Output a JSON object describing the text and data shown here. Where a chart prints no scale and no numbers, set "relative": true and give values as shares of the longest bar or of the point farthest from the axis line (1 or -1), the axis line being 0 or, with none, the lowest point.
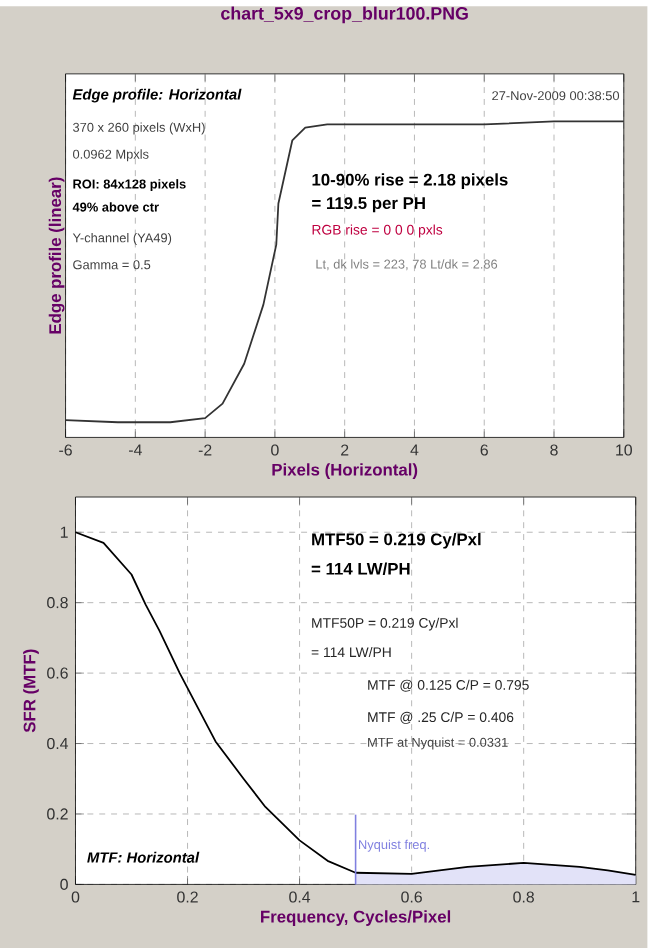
{
  "chart_data": [
    {
      "type": "line",
      "title": "chart_5x9_crop_blur100.PNG",
      "xlabel": "Pixels (Horizontal)",
      "ylabel": "Edge profile (linear)",
      "relative": true,
      "color": "#333333",
      "x": [
        -6,
        -4.5,
        -3,
        -2,
        -1.5,
        -0.88,
        -0.33,
        0.04,
        0.1,
        0.5,
        0.87,
        1.5,
        2.15,
        4,
        6,
        8,
        10
      ],
      "values": [
        0.055,
        0.048,
        0.048,
        0.061,
        0.107,
        0.233,
        0.42,
        0.61,
        0.74,
        0.94,
        0.98,
        0.99,
        0.99,
        0.99,
        0.99,
        1.0,
        1.0
      ],
      "xlim": [
        -6,
        10
      ],
      "xticks": [
        -6,
        -4,
        -2,
        0,
        2,
        4,
        6,
        8,
        10
      ],
      "grid": "x",
      "annotations": [
        "Edge profile: Horizontal",
        "27-Nov-2009 00:38:50",
        "370 x 260 pixels (WxH)",
        "0.0962 Mpxls",
        "ROI:  84x128 pixels",
        "49% above ctr",
        "Y-channel  (YA49)",
        "Gamma = 0.5",
        "10-90% rise = 2.18 pixels",
        "= 119.5 per PH",
        "RGB rise = 0  0  0 pxls",
        "Lt, dk lvls = 223, 78   Lt/dk = 2.86"
      ]
    },
    {
      "type": "line",
      "xlabel": "Frequency, Cycles/Pixel",
      "ylabel": "SFR (MTF)",
      "series": [
        {
          "type": "line",
          "color": "#000000",
          "x": [
            0,
            0.05,
            0.1,
            0.125,
            0.15,
            0.186,
            0.219,
            0.25,
            0.3,
            0.339,
            0.4,
            0.45,
            0.5,
            0.6,
            0.7,
            0.8,
            0.9,
            0.95,
            1.0
          ],
          "values": [
            1,
            0.97,
            0.88,
            0.795,
            0.72,
            0.6,
            0.5,
            0.406,
            0.3,
            0.22,
            0.125,
            0.067,
            0.0331,
            0.03,
            0.05,
            0.061,
            0.05,
            0.04,
            0.027
          ]
        },
        {
          "type": "area",
          "color": "#e2e2f8",
          "x": [
            0.5,
            0.6,
            0.7,
            0.8,
            0.9,
            0.95,
            1.0
          ],
          "values": [
            0.0331,
            0.03,
            0.05,
            0.061,
            0.05,
            0.04,
            0.027
          ]
        }
      ],
      "xlim": [
        0,
        1
      ],
      "ylim": [
        0,
        1.1
      ],
      "xticks": [
        0,
        0.2,
        0.4,
        0.6,
        0.8,
        1
      ],
      "yticks": [
        0,
        0.2,
        0.4,
        0.6,
        0.8,
        1
      ],
      "grid": true,
      "ref_lines": [
        {
          "axis": "x",
          "value": 0.5,
          "label": "Nyquist freq.",
          "color": "#8080e0"
        }
      ],
      "annotations": [
        "MTF50 = 0.219 Cy/Pxl",
        "= 114 LW/PH",
        "MTF50P = 0.219 Cy/Pxl",
        "= 114 LW/PH",
        "MTF @ 0.125 C/P = 0.795",
        "MTF @ .25 C/P = 0.406",
        "MTF at Nyquist = 0.0331",
        "MTF: Horizontal"
      ]
    }
  ]
}
